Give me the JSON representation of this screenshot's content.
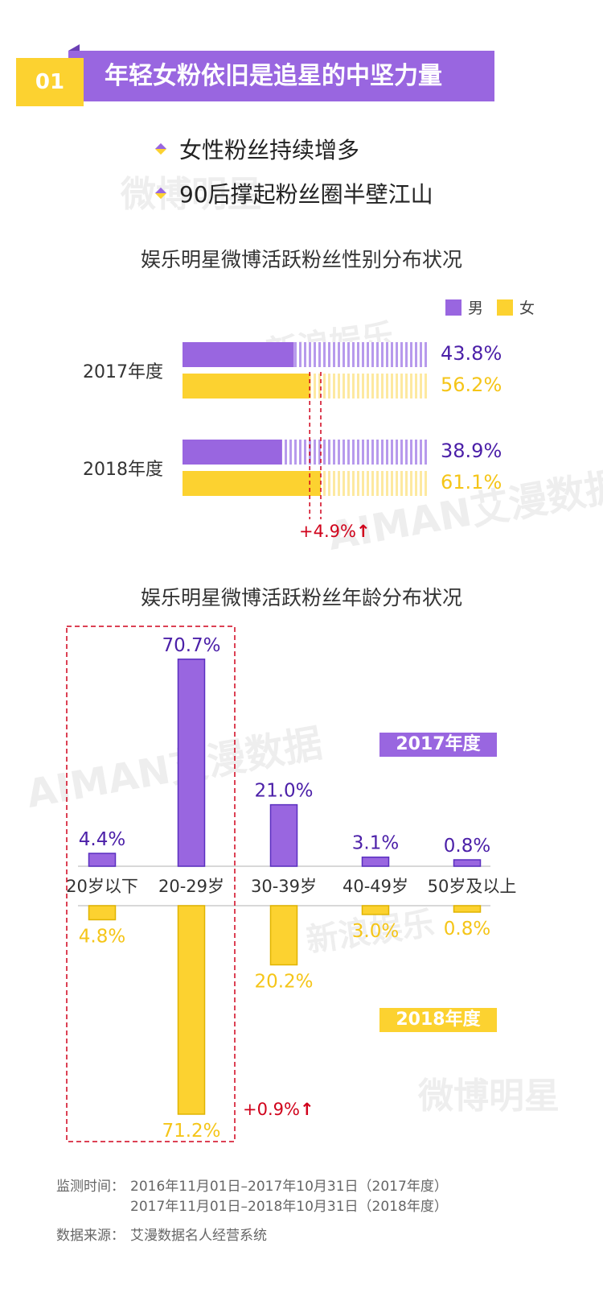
{
  "header": {
    "number": "01",
    "title": "年轻女粉依旧是追星的中坚力量"
  },
  "bullets": [
    "女性粉丝持续增多",
    "90后撑起粉丝圈半壁江山"
  ],
  "watermarks": {
    "weibo": "微博明星",
    "sina": "新浪娱乐",
    "aiman": "AIMAN艾漫数据"
  },
  "colors": {
    "male": "#9966e0",
    "female": "#fcd230",
    "accent_red": "#d0021b",
    "male_text": "#4b1fa8",
    "female_text": "#f5c518"
  },
  "chart_data": [
    {
      "type": "bar",
      "title": "娱乐明星微博活跃粉丝性别分布状况",
      "legend": [
        "男",
        "女"
      ],
      "categories": [
        "2017年度",
        "2018年度"
      ],
      "series": [
        {
          "name": "男",
          "values": [
            43.8,
            38.9
          ],
          "labels": [
            "43.8%",
            "38.9%"
          ]
        },
        {
          "name": "女",
          "values": [
            56.2,
            61.1
          ],
          "labels": [
            "56.2%",
            "61.1%"
          ]
        }
      ],
      "annotation": "+4.9%",
      "ylim": [
        0,
        100
      ]
    },
    {
      "type": "bar",
      "title": "娱乐明星微博活跃粉丝年龄分布状况",
      "categories": [
        "20岁以下",
        "20-29岁",
        "30-39岁",
        "40-49岁",
        "50岁及以上"
      ],
      "series": [
        {
          "name": "2017年度",
          "values": [
            4.4,
            70.7,
            21.0,
            3.1,
            0.8
          ],
          "labels": [
            "4.4%",
            "70.7%",
            "21.0%",
            "3.1%",
            "0.8%"
          ]
        },
        {
          "name": "2018年度",
          "values": [
            4.8,
            71.2,
            20.2,
            3.0,
            0.8
          ],
          "labels": [
            "4.8%",
            "71.2%",
            "20.2%",
            "3.0%",
            "0.8%"
          ]
        }
      ],
      "annotation": "+0.9%",
      "ylim": [
        0,
        71.2
      ]
    }
  ],
  "footer": {
    "monitor_label": "监测时间：",
    "monitor_line1": "2016年11月01日–2017年10月31日（2017年度）",
    "monitor_line2": "2017年11月01日–2018年10月31日（2018年度）",
    "source_label": "数据来源：",
    "source_value": "艾漫数据名人经营系统"
  }
}
